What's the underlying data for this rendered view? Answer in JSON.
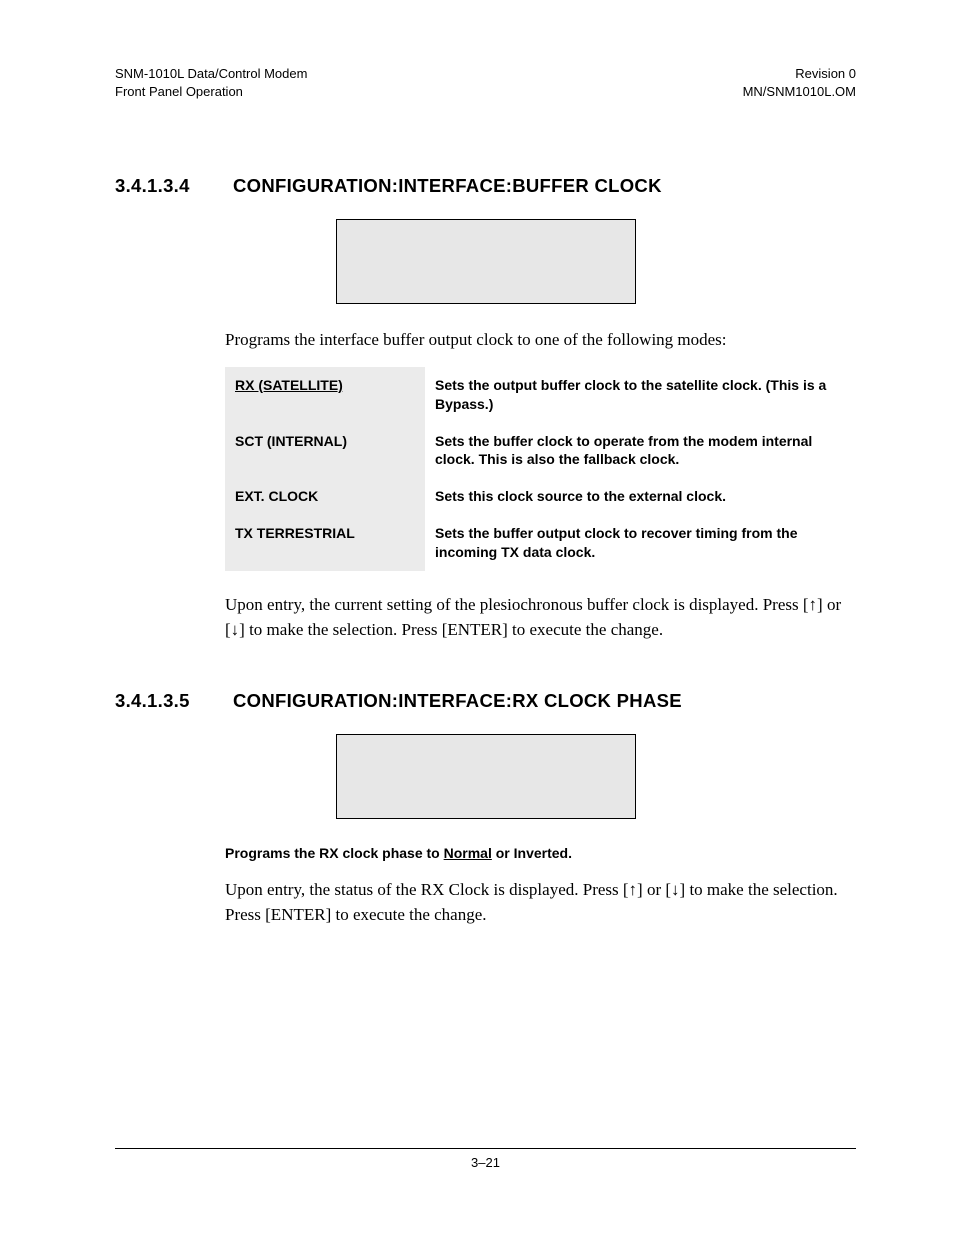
{
  "header": {
    "left_line1": "SNM-1010L Data/Control Modem",
    "left_line2": "Front Panel Operation",
    "right_line1": "Revision 0",
    "right_line2": "MN/SNM1010L.OM"
  },
  "section1": {
    "num": "3.4.1.3.4",
    "title": "CONFIGURATION:INTERFACE:BUFFER CLOCK",
    "intro": "Programs the interface buffer output clock to one of the following modes:",
    "rows": [
      {
        "name": "RX (SATELLITE)",
        "underline": true,
        "desc": "Sets the output buffer clock to the satellite clock. (This is a Bypass.)"
      },
      {
        "name": "SCT (INTERNAL)",
        "underline": false,
        "desc": "Sets the buffer clock to operate from the modem internal clock. This is also the fallback clock."
      },
      {
        "name": "EXT. CLOCK",
        "underline": false,
        "desc": "Sets this clock source to the external clock."
      },
      {
        "name": "TX TERRESTRIAL",
        "underline": false,
        "desc": "Sets the buffer output clock to recover timing from the incoming TX data clock."
      }
    ],
    "outro_a": "Upon entry, the current setting of the plesiochronous buffer clock is displayed. Press [",
    "outro_b": "] or [",
    "outro_c": "] to make the selection. Press [ENTER] to execute the change."
  },
  "section2": {
    "num": "3.4.1.3.5",
    "title": "CONFIGURATION:INTERFACE:RX CLOCK PHASE",
    "bold_a": "Programs the RX clock phase to ",
    "bold_underlined": "Normal",
    "bold_b": " or Inverted.",
    "outro_a": "Upon entry, the status of the RX Clock is displayed. Press [",
    "outro_b": "] or [",
    "outro_c": "] to make the selection. Press [ENTER] to execute the change."
  },
  "arrows": {
    "up": "↑",
    "down": "↓"
  },
  "footer": {
    "page": "3–21"
  },
  "colors": {
    "display_box_bg": "#e7e7e7",
    "table_name_bg": "#ebebeb",
    "text": "#000000",
    "background": "#ffffff"
  }
}
